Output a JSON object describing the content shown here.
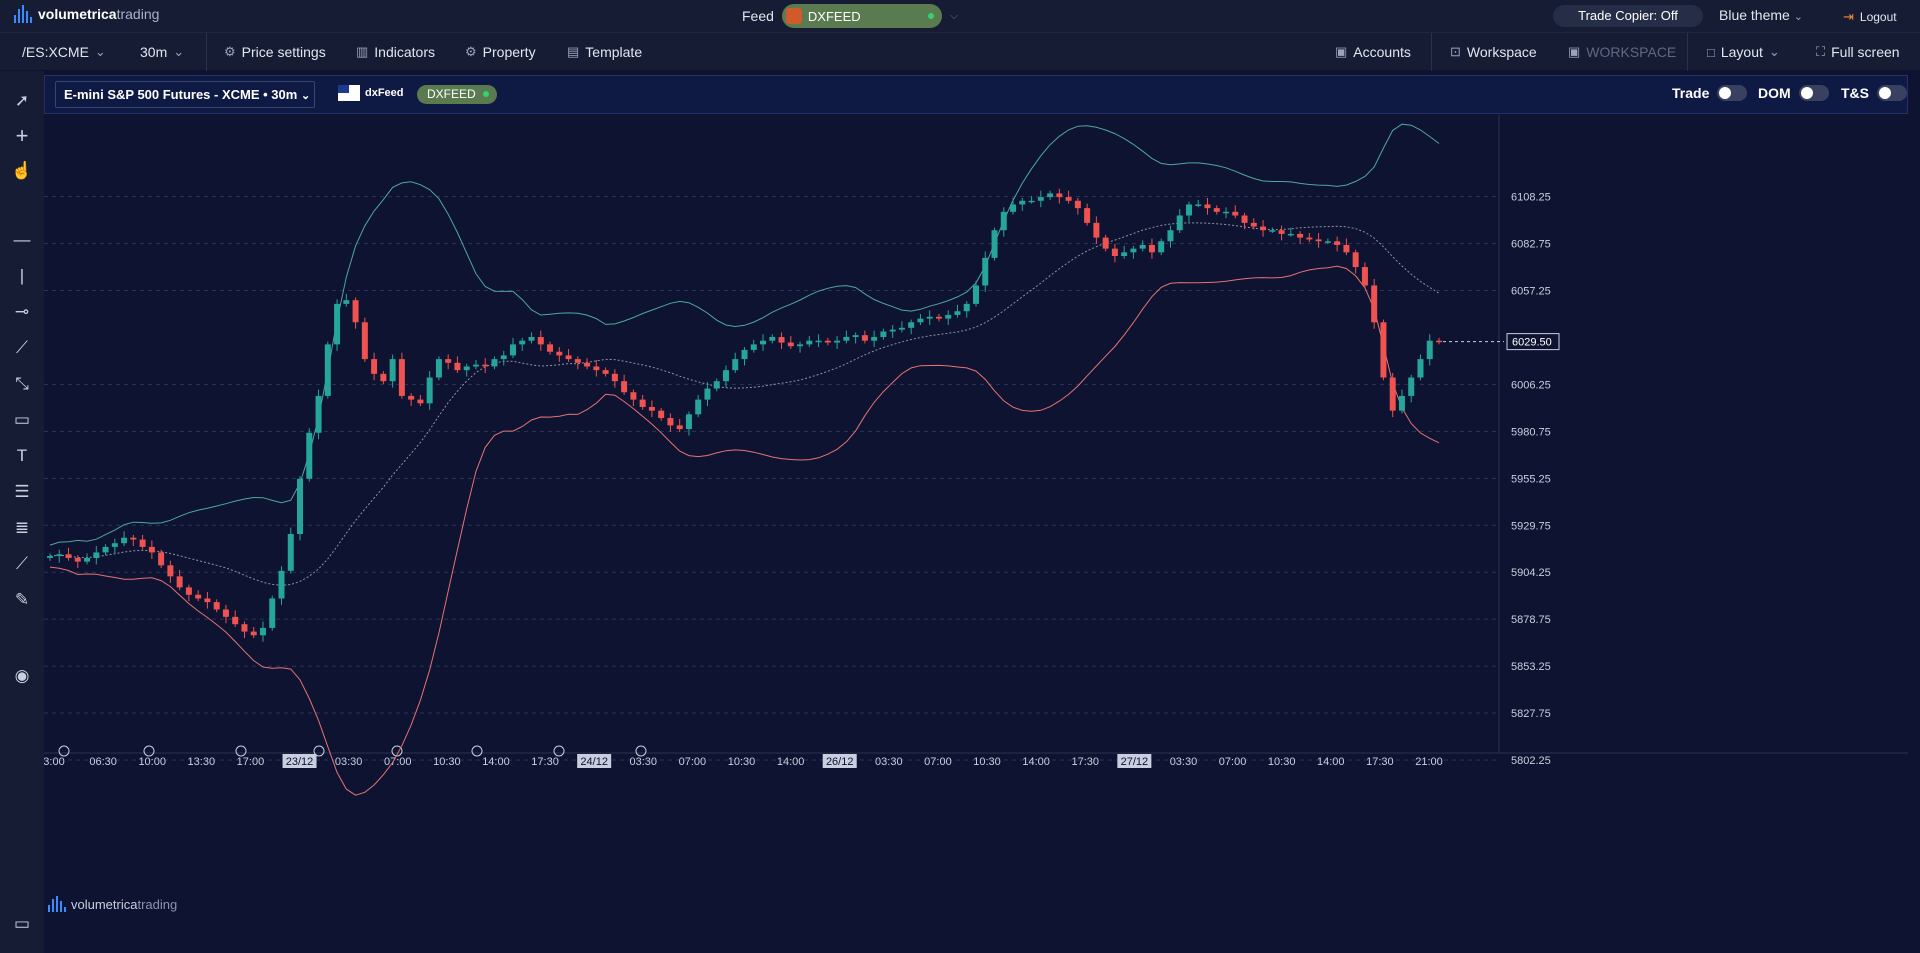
{
  "top": {
    "logo_bold": "volumetrica",
    "logo_light": "trading",
    "feed_label": "Feed",
    "feed_name": "DXFEED",
    "trade_copier": "Trade Copier: Off",
    "theme": "Blue theme",
    "logout": "Logout"
  },
  "toolbar": {
    "symbol": "/ES:XCME",
    "timeframe": "30m",
    "price_settings": "Price settings",
    "indicators": "Indicators",
    "property": "Property",
    "template": "Template",
    "accounts": "Accounts",
    "workspace": "Workspace",
    "workspace_name": "WORKSPACE",
    "layout": "Layout",
    "fullscreen": "Full screen"
  },
  "chart_header": {
    "instrument": "E-mini S&P 500 Futures - XCME • 30m",
    "feed_brand": "dxFeed",
    "feed_pill": "DXFEED",
    "trade": "Trade",
    "dom": "DOM",
    "ts": "T&S"
  },
  "left_tools": [
    "cursor-icon",
    "crosshair-icon",
    "hand-icon",
    "horizontal-line-icon",
    "vertical-line-icon",
    "ray-icon",
    "trend-line-icon",
    "path-icon",
    "rectangle-icon",
    "text-icon",
    "fibonacci-icon",
    "levels-icon",
    "measure-tool-icon",
    "ruler-icon",
    "eye-icon",
    "screen-icon"
  ],
  "colors": {
    "up": "#26a69a",
    "down": "#ef5350",
    "upper_band": "#4fa89b",
    "lower_band": "#e57373",
    "mid_band": "#cccccc",
    "bg": "#0d1330"
  },
  "chart_data": {
    "type": "candlestick",
    "title": "E-mini S&P 500 Futures - XCME • 30m",
    "y_ticks": [
      "6108.25",
      "6082.75",
      "6057.25",
      "6006.25",
      "5980.75",
      "5955.25",
      "5929.75",
      "5904.25",
      "5878.75",
      "5853.25",
      "5827.75",
      "5802.25"
    ],
    "ylim": [
      5802.25,
      6120
    ],
    "last_price": "6029.50",
    "x_ticks": [
      "3:00",
      "06:30",
      "10:00",
      "13:30",
      "17:00",
      "23/12",
      "03:30",
      "07:00",
      "10:30",
      "14:00",
      "17:30",
      "24/12",
      "03:30",
      "07:00",
      "10:30",
      "14:00",
      "26/12",
      "03:30",
      "07:00",
      "10:30",
      "14:00",
      "17:30",
      "27/12",
      "03:30",
      "07:00",
      "10:30",
      "14:00",
      "17:30",
      "21:00"
    ],
    "date_ticks": [
      "23/12",
      "24/12",
      "26/12",
      "27/12"
    ],
    "close_path": [
      5913,
      5914,
      5912,
      5910,
      5912,
      5915,
      5918,
      5920,
      5923,
      5922,
      5918,
      5915,
      5908,
      5902,
      5896,
      5892,
      5890,
      5888,
      5884,
      5880,
      5876,
      5872,
      5870,
      5874,
      5890,
      5905,
      5925,
      5955,
      5980,
      6000,
      6028,
      6050,
      6052,
      6040,
      6020,
      6012,
      6008,
      6020,
      6000,
      5998,
      5996,
      6010,
      6020,
      6018,
      6014,
      6016,
      6017,
      6016,
      6020,
      6022,
      6028,
      6030,
      6032,
      6028,
      6024,
      6022,
      6020,
      6018,
      6016,
      6014,
      6012,
      6008,
      6002,
      5998,
      5994,
      5992,
      5988,
      5984,
      5982,
      5990,
      5998,
      6004,
      6008,
      6014,
      6020,
      6025,
      6028,
      6030,
      6032,
      6029,
      6027,
      6028,
      6030,
      6030,
      6029,
      6030,
      6032,
      6033,
      6030,
      6032,
      6035,
      6036,
      6037,
      6040,
      6042,
      6043,
      6042,
      6044,
      6046,
      6050,
      6060,
      6075,
      6090,
      6100,
      6104,
      6106,
      6106,
      6108,
      6110,
      6108,
      6106,
      6102,
      6094,
      6086,
      6080,
      6076,
      6078,
      6080,
      6082,
      6078,
      6084,
      6090,
      6098,
      6104,
      6104,
      6102,
      6100,
      6100,
      6098,
      6094,
      6092,
      6090,
      6090,
      6088,
      6088,
      6086,
      6085,
      6084,
      6084,
      6082,
      6078,
      6070,
      6060,
      6040,
      6010,
      5992,
      6000,
      6010,
      6020,
      6030,
      6029.5
    ]
  }
}
